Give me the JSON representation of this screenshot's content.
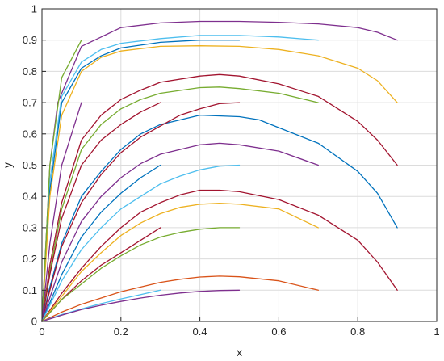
{
  "chart_data": {
    "type": "line",
    "title": "",
    "xlabel": "x",
    "ylabel": "y",
    "xlim": [
      0,
      1
    ],
    "ylim": [
      0,
      1
    ],
    "grid": true,
    "legend": "none",
    "x_ticks": [
      {
        "value": 0,
        "label": "0"
      },
      {
        "value": 0.2,
        "label": "0.2"
      },
      {
        "value": 0.4,
        "label": "0.4"
      },
      {
        "value": 0.6,
        "label": "0.6"
      },
      {
        "value": 0.8,
        "label": "0.8"
      },
      {
        "value": 1,
        "label": "1"
      }
    ],
    "y_ticks": [
      {
        "value": 0,
        "label": "0"
      },
      {
        "value": 0.1,
        "label": "0.1"
      },
      {
        "value": 0.2,
        "label": "0.2"
      },
      {
        "value": 0.3,
        "label": "0.3"
      },
      {
        "value": 0.4,
        "label": "0.4"
      },
      {
        "value": 0.5,
        "label": "0.5"
      },
      {
        "value": 0.6,
        "label": "0.6"
      },
      {
        "value": 0.7,
        "label": "0.7"
      },
      {
        "value": 0.8,
        "label": "0.8"
      },
      {
        "value": 0.9,
        "label": "0.9"
      },
      {
        "value": 1,
        "label": "1"
      }
    ],
    "series": [
      {
        "color": "#7e2f8e",
        "x": [
          0,
          0.02,
          0.04,
          0.1,
          0.2,
          0.3,
          0.4,
          0.5,
          0.6,
          0.7,
          0.8,
          0.85,
          0.9
        ],
        "y": [
          0,
          0.5,
          0.7,
          0.88,
          0.94,
          0.955,
          0.96,
          0.96,
          0.957,
          0.952,
          0.94,
          0.925,
          0.9
        ]
      },
      {
        "color": "#4dbeee",
        "x": [
          0,
          0.02,
          0.05,
          0.1,
          0.15,
          0.2,
          0.3,
          0.4,
          0.5,
          0.6,
          0.7
        ],
        "y": [
          0,
          0.45,
          0.72,
          0.83,
          0.87,
          0.89,
          0.905,
          0.915,
          0.915,
          0.91,
          0.9
        ]
      },
      {
        "color": "#0072bd",
        "x": [
          0,
          0.02,
          0.05,
          0.1,
          0.15,
          0.2,
          0.3,
          0.4,
          0.5
        ],
        "y": [
          0,
          0.42,
          0.7,
          0.81,
          0.85,
          0.875,
          0.893,
          0.9,
          0.9
        ]
      },
      {
        "color": "#edb120",
        "x": [
          0,
          0.02,
          0.05,
          0.1,
          0.15,
          0.2,
          0.3,
          0.4,
          0.5,
          0.6,
          0.7,
          0.8,
          0.85,
          0.9
        ],
        "y": [
          0,
          0.4,
          0.66,
          0.8,
          0.845,
          0.865,
          0.88,
          0.882,
          0.88,
          0.87,
          0.85,
          0.81,
          0.77,
          0.7
        ]
      },
      {
        "color": "#77ac30",
        "x": [
          0,
          0.02,
          0.05,
          0.1
        ],
        "y": [
          0,
          0.5,
          0.78,
          0.9
        ]
      },
      {
        "color": "#a2142f",
        "x": [
          0,
          0.02,
          0.05,
          0.1,
          0.15,
          0.2,
          0.25,
          0.3,
          0.4,
          0.45,
          0.5,
          0.6,
          0.7,
          0.8,
          0.85,
          0.9
        ],
        "y": [
          0,
          0.18,
          0.38,
          0.58,
          0.66,
          0.71,
          0.74,
          0.765,
          0.785,
          0.79,
          0.785,
          0.76,
          0.72,
          0.64,
          0.58,
          0.5
        ]
      },
      {
        "color": "#77ac30",
        "x": [
          0,
          0.02,
          0.05,
          0.1,
          0.15,
          0.2,
          0.25,
          0.3,
          0.4,
          0.45,
          0.5,
          0.6,
          0.7
        ],
        "y": [
          0,
          0.16,
          0.36,
          0.55,
          0.63,
          0.68,
          0.71,
          0.73,
          0.748,
          0.75,
          0.745,
          0.73,
          0.7
        ]
      },
      {
        "color": "#a2142f",
        "x": [
          0,
          0.02,
          0.05,
          0.1,
          0.15,
          0.2,
          0.25,
          0.3
        ],
        "y": [
          0,
          0.15,
          0.33,
          0.5,
          0.58,
          0.63,
          0.67,
          0.7
        ]
      },
      {
        "color": "#7e2f8e",
        "x": [
          0,
          0.02,
          0.05,
          0.1
        ],
        "y": [
          0,
          0.25,
          0.5,
          0.7
        ]
      },
      {
        "color": "#0072bd",
        "x": [
          0,
          0.02,
          0.05,
          0.1,
          0.15,
          0.2,
          0.25,
          0.3,
          0.4,
          0.5,
          0.55,
          0.6,
          0.7,
          0.8,
          0.85,
          0.9
        ],
        "y": [
          0,
          0.11,
          0.25,
          0.4,
          0.48,
          0.55,
          0.6,
          0.63,
          0.66,
          0.655,
          0.645,
          0.62,
          0.57,
          0.48,
          0.41,
          0.3
        ]
      },
      {
        "color": "#a2142f",
        "x": [
          0,
          0.02,
          0.05,
          0.1,
          0.15,
          0.2,
          0.25,
          0.3,
          0.35,
          0.4,
          0.45,
          0.5
        ],
        "y": [
          0,
          0.1,
          0.24,
          0.38,
          0.47,
          0.54,
          0.59,
          0.625,
          0.66,
          0.68,
          0.697,
          0.7
        ]
      },
      {
        "color": "#7e2f8e",
        "x": [
          0,
          0.05,
          0.1,
          0.15,
          0.2,
          0.25,
          0.3,
          0.4,
          0.45,
          0.5,
          0.6,
          0.7
        ],
        "y": [
          0,
          0.19,
          0.32,
          0.4,
          0.46,
          0.505,
          0.535,
          0.565,
          0.57,
          0.565,
          0.545,
          0.5
        ]
      },
      {
        "color": "#0072bd",
        "x": [
          0,
          0.05,
          0.1,
          0.15,
          0.2,
          0.25,
          0.3
        ],
        "y": [
          0,
          0.15,
          0.27,
          0.35,
          0.41,
          0.46,
          0.5
        ]
      },
      {
        "color": "#4dbeee",
        "x": [
          0,
          0.05,
          0.1,
          0.15,
          0.2,
          0.25,
          0.3,
          0.35,
          0.4,
          0.45,
          0.5
        ],
        "y": [
          0,
          0.13,
          0.23,
          0.3,
          0.36,
          0.4,
          0.44,
          0.465,
          0.485,
          0.497,
          0.5
        ]
      },
      {
        "color": "#a2142f",
        "x": [
          0,
          0.05,
          0.1,
          0.15,
          0.2,
          0.25,
          0.3,
          0.35,
          0.4,
          0.45,
          0.5,
          0.6,
          0.7,
          0.8,
          0.85,
          0.9
        ],
        "y": [
          0,
          0.09,
          0.17,
          0.24,
          0.3,
          0.35,
          0.38,
          0.405,
          0.42,
          0.42,
          0.415,
          0.39,
          0.34,
          0.26,
          0.19,
          0.1
        ]
      },
      {
        "color": "#edb120",
        "x": [
          0,
          0.05,
          0.1,
          0.15,
          0.2,
          0.25,
          0.3,
          0.35,
          0.4,
          0.45,
          0.5,
          0.6,
          0.7
        ],
        "y": [
          0,
          0.08,
          0.16,
          0.22,
          0.275,
          0.315,
          0.345,
          0.365,
          0.375,
          0.378,
          0.375,
          0.36,
          0.3
        ]
      },
      {
        "color": "#a2142f",
        "x": [
          0,
          0.05,
          0.1,
          0.15,
          0.2,
          0.25,
          0.3
        ],
        "y": [
          0,
          0.07,
          0.13,
          0.18,
          0.22,
          0.26,
          0.3
        ]
      },
      {
        "color": "#77ac30",
        "x": [
          0,
          0.05,
          0.1,
          0.15,
          0.2,
          0.25,
          0.3,
          0.35,
          0.4,
          0.45,
          0.5
        ],
        "y": [
          0,
          0.07,
          0.12,
          0.17,
          0.21,
          0.245,
          0.27,
          0.285,
          0.295,
          0.3,
          0.3
        ]
      },
      {
        "color": "#d95319",
        "x": [
          0,
          0.05,
          0.1,
          0.15,
          0.2,
          0.25,
          0.3,
          0.35,
          0.4,
          0.45,
          0.5,
          0.6,
          0.7
        ],
        "y": [
          0,
          0.03,
          0.055,
          0.075,
          0.095,
          0.11,
          0.125,
          0.135,
          0.142,
          0.145,
          0.143,
          0.13,
          0.1
        ]
      },
      {
        "color": "#4dbeee",
        "x": [
          0,
          0.05,
          0.1,
          0.15,
          0.2,
          0.25,
          0.3
        ],
        "y": [
          0,
          0.022,
          0.04,
          0.057,
          0.072,
          0.086,
          0.1
        ]
      },
      {
        "color": "#7e2f8e",
        "x": [
          0,
          0.05,
          0.1,
          0.15,
          0.2,
          0.25,
          0.3,
          0.35,
          0.4,
          0.45,
          0.5
        ],
        "y": [
          0,
          0.02,
          0.038,
          0.052,
          0.064,
          0.075,
          0.084,
          0.091,
          0.096,
          0.099,
          0.1
        ]
      }
    ]
  }
}
